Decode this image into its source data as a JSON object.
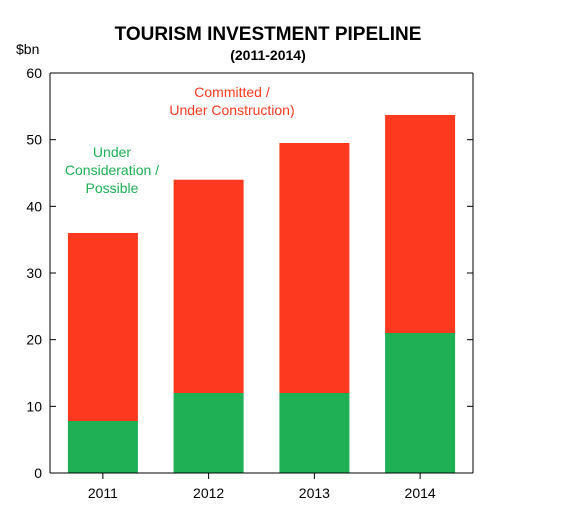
{
  "chart_data": {
    "type": "bar",
    "stacked": true,
    "title": "TOURISM INVESTMENT PIPELINE",
    "subtitle": "(2011-2014)",
    "y_unit_label": "$bn",
    "categories": [
      "2011",
      "2012",
      "2013",
      "2014"
    ],
    "ylim": [
      0,
      60
    ],
    "y_ticks": [
      0,
      10,
      20,
      30,
      40,
      50,
      60
    ],
    "grid": false,
    "series": [
      {
        "name": "Under Consideration / Possible",
        "color": "#1faf55",
        "values": [
          7.8,
          12,
          12,
          21
        ]
      },
      {
        "name": "Committed / Under Construction)",
        "color": "#fd3a1f",
        "values": [
          28.2,
          32,
          37.5,
          32.7
        ]
      }
    ],
    "annotations": [
      {
        "lines": [
          "Committed /",
          "Under Construction)"
        ],
        "color": "#fd3a1f"
      },
      {
        "lines": [
          "Under",
          "Consideration /",
          "Possible"
        ],
        "color": "#1faf55"
      }
    ]
  }
}
